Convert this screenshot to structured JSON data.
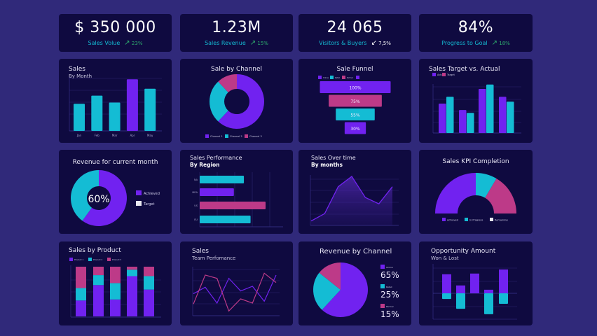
{
  "colors": {
    "purple": "#7122f0",
    "cyan": "#14bcd4",
    "pink": "#bd3a88",
    "white": "#e8e8f0",
    "grid": "#2a2570",
    "axis": "#3b3590"
  },
  "kpis": [
    {
      "value": "$ 350 000",
      "label": "Sales Volue",
      "change": "23%",
      "direction": "up"
    },
    {
      "value": "1.23M",
      "label": "Sales Revenue",
      "change": "15%",
      "direction": "up"
    },
    {
      "value": "24 065",
      "label": "Visitors & Buyers",
      "change": "7,5%",
      "direction": "down"
    },
    {
      "value": "84%",
      "label": "Progress to Goal",
      "change": "18%",
      "direction": "up"
    }
  ],
  "icons": {
    "up": "↗",
    "down": "↙"
  },
  "chart_data": [
    {
      "id": "sales_month",
      "type": "bar",
      "title": "Sales",
      "subtitle": "By Month",
      "categories": [
        "Jan",
        "Feb",
        "Mar",
        "Apr",
        "May"
      ],
      "values": [
        43,
        56,
        45,
        82,
        67
      ],
      "highlight": "Apr",
      "grid": true
    },
    {
      "id": "sale_channel",
      "type": "pie",
      "variant": "donut",
      "title": "Sale by Channel",
      "categories": [
        "Channel 1",
        "Channel 2",
        "Channel 3"
      ],
      "values": [
        62,
        26,
        12
      ],
      "legend": "bottom"
    },
    {
      "id": "funnel",
      "type": "bar",
      "variant": "funnel",
      "title": "Sale Funnel",
      "legend_entries": [
        "Online",
        "Retail",
        "Partner",
        ""
      ],
      "data_labels": [
        "100%",
        "75%",
        "55%",
        "30%"
      ],
      "values": [
        100,
        75,
        55,
        30
      ],
      "legend": "top"
    },
    {
      "id": "target_actual",
      "type": "bar",
      "variant": "grouped",
      "title": "Sales Target vs. Actual",
      "series": [
        {
          "name": "Actual",
          "values": [
            60,
            47,
            90,
            74
          ]
        },
        {
          "name": "Target",
          "values": [
            74,
            41,
            99,
            64
          ]
        }
      ],
      "legend": "top-left",
      "grid": true
    },
    {
      "id": "revenue_month",
      "type": "pie",
      "variant": "donut",
      "title": "Revenue for current month",
      "center_label": "60%",
      "categories": [
        "Achieved",
        "Target"
      ],
      "values": [
        60,
        40
      ],
      "legend": "right"
    },
    {
      "id": "region",
      "type": "bar",
      "variant": "horizontal",
      "title": "Sales Performance",
      "subtitle": "By Region",
      "categories": [
        "NA",
        "MEA",
        "US",
        "EU"
      ],
      "values": [
        53,
        41,
        79,
        61
      ],
      "grid": true
    },
    {
      "id": "over_time",
      "type": "area",
      "title": "Sales Over time",
      "subtitle": "By months",
      "values": [
        9,
        24,
        79,
        100,
        57,
        44,
        79
      ],
      "grid": true
    },
    {
      "id": "kpi_completion",
      "type": "pie",
      "variant": "half-donut",
      "title": "Sales KPI Completion",
      "categories": [
        "Achieved",
        "In Progress",
        "Remaining"
      ],
      "values": [
        50,
        17,
        33
      ],
      "legend": "bottom"
    },
    {
      "id": "by_product",
      "type": "bar",
      "variant": "stacked",
      "title": "Sales by Product",
      "series": [
        {
          "name": "Product 1",
          "values": [
            32,
            63,
            34,
            81,
            54
          ]
        },
        {
          "name": "Product 2",
          "values": [
            25,
            20,
            33,
            13,
            27
          ]
        },
        {
          "name": "Product 3",
          "values": [
            43,
            17,
            33,
            6,
            19
          ]
        }
      ],
      "legend": "top-left",
      "grid": true
    },
    {
      "id": "team",
      "type": "line",
      "title": "Sales",
      "subtitle": "Team Perfomance",
      "series": [
        {
          "values": [
            47,
            61,
            27,
            80,
            53,
            63,
            31,
            87
          ]
        },
        {
          "values": [
            25,
            87,
            80,
            10,
            36,
            27,
            91,
            71
          ]
        }
      ],
      "grid": true
    },
    {
      "id": "revenue_channel",
      "type": "pie",
      "title": "Revenue by Channel",
      "categories": [
        "Online",
        "Retail",
        "Partner"
      ],
      "values": [
        65,
        25,
        15
      ],
      "data_labels": [
        "65%",
        "25%",
        "15%"
      ],
      "legend": "right"
    },
    {
      "id": "opportunity",
      "type": "bar",
      "variant": "won-lost",
      "title": "Opportunity Amount",
      "subtitle": "Won & Lost",
      "series": [
        {
          "values": [
            80,
            33,
            83,
            15,
            100
          ]
        },
        {
          "values": [
            -24,
            -65,
            0,
            -88,
            -44
          ]
        }
      ],
      "grid": true
    }
  ]
}
